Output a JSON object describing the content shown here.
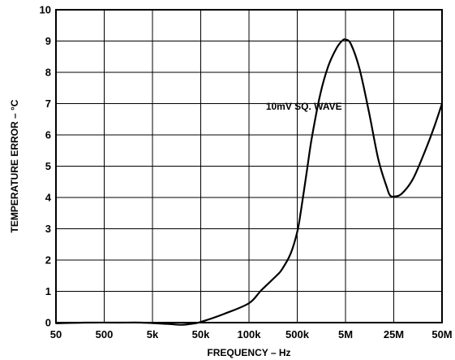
{
  "chart_data": {
    "type": "line",
    "title": "",
    "xlabel": "FREQUENCY – Hz",
    "ylabel": "TEMPERATURE ERROR – °C",
    "x_scale": "log",
    "x_ticks": [
      {
        "value": 50,
        "label": "50"
      },
      {
        "value": 500,
        "label": "500"
      },
      {
        "value": 5000,
        "label": "5k"
      },
      {
        "value": 50000,
        "label": "50k"
      },
      {
        "value": 100000,
        "label": "100k"
      },
      {
        "value": 500000,
        "label": "500k"
      },
      {
        "value": 5000000,
        "label": "5M"
      },
      {
        "value": 25000000,
        "label": "25M"
      },
      {
        "value": 50000000,
        "label": "50M"
      }
    ],
    "y_ticks": [
      {
        "value": 0,
        "label": "0"
      },
      {
        "value": 1,
        "label": "1"
      },
      {
        "value": 2,
        "label": "2"
      },
      {
        "value": 3,
        "label": "3"
      },
      {
        "value": 4,
        "label": "4"
      },
      {
        "value": 5,
        "label": "5"
      },
      {
        "value": 6,
        "label": "6"
      },
      {
        "value": 7,
        "label": "7"
      },
      {
        "value": 8,
        "label": "8"
      },
      {
        "value": 9,
        "label": "9"
      },
      {
        "value": 10,
        "label": "10"
      }
    ],
    "xlim": [
      50,
      50000000
    ],
    "ylim": [
      0,
      10
    ],
    "grid": true,
    "annotation": "10mV SQ. WAVE",
    "series": [
      {
        "color": "#000000",
        "points": [
          {
            "x": 50,
            "y": -0.02
          },
          {
            "x": 200,
            "y": 0.0
          },
          {
            "x": 1000,
            "y": 0.0
          },
          {
            "x": 3000,
            "y": 0.0
          },
          {
            "x": 10000,
            "y": -0.04
          },
          {
            "x": 20000,
            "y": -0.07
          },
          {
            "x": 35000,
            "y": -0.03
          },
          {
            "x": 50000,
            "y": 0.02
          },
          {
            "x": 70000,
            "y": 0.28
          },
          {
            "x": 100000,
            "y": 0.62
          },
          {
            "x": 150000,
            "y": 1.03
          },
          {
            "x": 250000,
            "y": 1.5
          },
          {
            "x": 300000,
            "y": 1.7
          },
          {
            "x": 400000,
            "y": 2.2
          },
          {
            "x": 500000,
            "y": 2.9
          },
          {
            "x": 600000,
            "y": 3.6
          },
          {
            "x": 800000,
            "y": 4.9
          },
          {
            "x": 1000000,
            "y": 5.9
          },
          {
            "x": 1500000,
            "y": 7.3
          },
          {
            "x": 2200000,
            "y": 8.2
          },
          {
            "x": 3200000,
            "y": 8.75
          },
          {
            "x": 4200000,
            "y": 9.0
          },
          {
            "x": 5000000,
            "y": 9.05
          },
          {
            "x": 6000000,
            "y": 8.9
          },
          {
            "x": 8000000,
            "y": 8.1
          },
          {
            "x": 11000000,
            "y": 6.7
          },
          {
            "x": 15000000,
            "y": 5.2
          },
          {
            "x": 20000000,
            "y": 4.3
          },
          {
            "x": 22000000,
            "y": 4.07
          },
          {
            "x": 25000000,
            "y": 4.03
          },
          {
            "x": 28000000,
            "y": 4.12
          },
          {
            "x": 33000000,
            "y": 4.6
          },
          {
            "x": 40000000,
            "y": 5.6
          },
          {
            "x": 45000000,
            "y": 6.3
          },
          {
            "x": 50000000,
            "y": 7.0
          }
        ]
      }
    ]
  }
}
